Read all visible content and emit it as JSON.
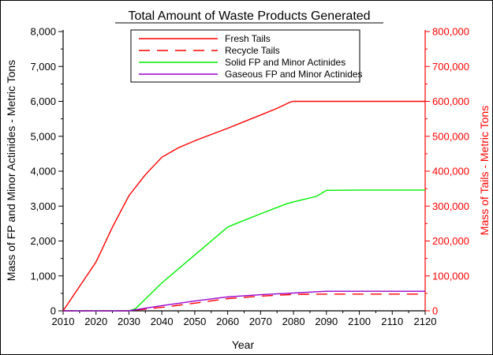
{
  "chart_data": {
    "type": "line",
    "title": "Total Amount of Waste Products Generated",
    "xlabel": "Year",
    "ylabel_left": "Mass of FP and Minor Actinides - Metric Tons",
    "ylabel_right": "Mass of Tails - Metric Tons",
    "xlim": [
      2010,
      2120
    ],
    "ylim_left": [
      0,
      8000
    ],
    "ylim_right": [
      0,
      800000
    ],
    "x_ticks": [
      2010,
      2020,
      2030,
      2040,
      2050,
      2060,
      2070,
      2080,
      2090,
      2100,
      2110,
      2120
    ],
    "y_left_ticks": [
      "0",
      "1,000",
      "2,000",
      "3,000",
      "4,000",
      "5,000",
      "6,000",
      "7,000",
      "8,000"
    ],
    "y_right_ticks": [
      "0",
      "100,000",
      "200,000",
      "300,000",
      "400,000",
      "500,000",
      "600,000",
      "700,000",
      "800,000"
    ],
    "legend_position": "top-center",
    "grid": false,
    "series": [
      {
        "name": "Fresh Tails",
        "axis": "right",
        "color": "#ff0000",
        "dash": "solid",
        "x": [
          2010,
          2015,
          2020,
          2022,
          2025,
          2030,
          2035,
          2040,
          2045,
          2050,
          2055,
          2060,
          2065,
          2070,
          2075,
          2079,
          2080,
          2090,
          2100,
          2110,
          2120
        ],
        "y": [
          0,
          70000,
          140000,
          180000,
          240000,
          330000,
          390000,
          440000,
          467000,
          487000,
          505000,
          523000,
          542000,
          561000,
          580000,
          598000,
          600000,
          600000,
          600000,
          600000,
          600000
        ]
      },
      {
        "name": "Recycle Tails",
        "axis": "right",
        "color": "#ff0000",
        "dash": "dashed",
        "x": [
          2010,
          2030,
          2040,
          2050,
          2060,
          2070,
          2080,
          2090,
          2100,
          2110,
          2120
        ],
        "y": [
          0,
          0,
          10000,
          22000,
          35000,
          42000,
          47000,
          48000,
          48000,
          48000,
          48000
        ]
      },
      {
        "name": "Solid FP and Minor Actinides",
        "axis": "left",
        "color": "#00ee00",
        "dash": "solid",
        "x": [
          2010,
          2030,
          2032,
          2040,
          2050,
          2060,
          2062,
          2070,
          2078,
          2080,
          2087,
          2090,
          2100,
          2120
        ],
        "y": [
          0,
          0,
          60,
          800,
          1600,
          2400,
          2480,
          2780,
          3070,
          3120,
          3280,
          3450,
          3460,
          3460
        ]
      },
      {
        "name": "Gaseous FP and Minor Actinides",
        "axis": "left",
        "color": "#9900cc",
        "dash": "solid",
        "x": [
          2010,
          2030,
          2040,
          2050,
          2060,
          2070,
          2080,
          2090,
          2100,
          2120
        ],
        "y": [
          0,
          0,
          150,
          280,
          400,
          460,
          510,
          560,
          560,
          560
        ]
      }
    ]
  }
}
